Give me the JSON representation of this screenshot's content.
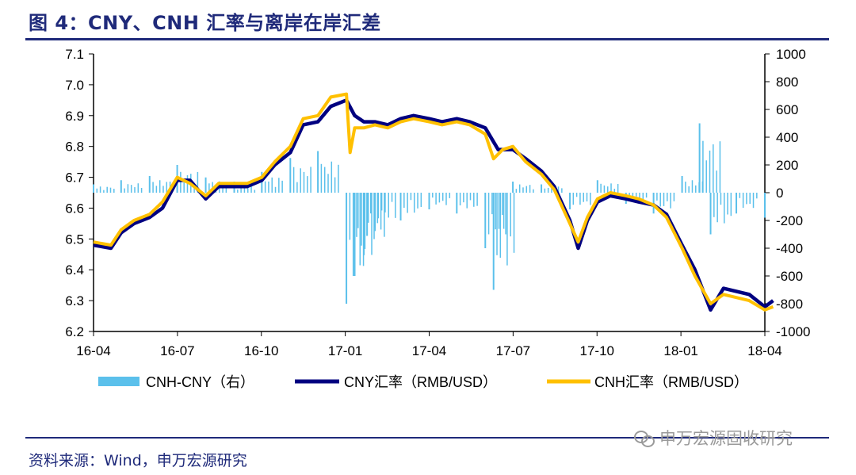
{
  "title": "图 4：CNY、CNH 汇率与离岸在岸汇差",
  "source": "资料来源：Wind，申万宏源研究",
  "watermark": "申万宏源固收研究",
  "colors": {
    "title": "#1F2A7A",
    "cny": "#000080",
    "cnh": "#FFC000",
    "spread": "#5BC0EB",
    "rule": "#1F2A7A"
  },
  "chart_data": {
    "type": "line",
    "x_ticks": [
      "16-04",
      "16-07",
      "16-10",
      "17-01",
      "17-04",
      "17-07",
      "17-10",
      "18-01",
      "18-04"
    ],
    "x_range": [
      "2016-04",
      "2018-04"
    ],
    "y_left": {
      "range": [
        6.2,
        7.1
      ],
      "ticks": [
        "7.1",
        "7.0",
        "6.9",
        "6.8",
        "6.7",
        "6.6",
        "6.5",
        "6.4",
        "6.3",
        "6.2"
      ]
    },
    "y_right": {
      "range": [
        -1000,
        1000
      ],
      "ticks": [
        "1000",
        "800",
        "600",
        "400",
        "200",
        "0",
        "-200",
        "-400",
        "-600",
        "-800",
        "-1000"
      ]
    },
    "legend": {
      "placement": "bottom",
      "items": [
        "CNH-CNY（右）",
        "CNY汇率（RMB/USD）",
        "CNH汇率（RMB/USD）"
      ]
    },
    "series": [
      {
        "name": "CNY汇率（RMB/USD）",
        "axis": "left",
        "kind": "line",
        "points": [
          [
            "2016-04",
            6.48
          ],
          [
            "2016-04-20",
            6.47
          ],
          [
            "2016-05",
            6.52
          ],
          [
            "2016-05-15",
            6.55
          ],
          [
            "2016-06",
            6.57
          ],
          [
            "2016-06-15",
            6.6
          ],
          [
            "2016-07",
            6.69
          ],
          [
            "2016-07-15",
            6.69
          ],
          [
            "2016-08",
            6.63
          ],
          [
            "2016-08-15",
            6.67
          ],
          [
            "2016-09",
            6.67
          ],
          [
            "2016-09-15",
            6.67
          ],
          [
            "2016-10",
            6.69
          ],
          [
            "2016-10-15",
            6.74
          ],
          [
            "2016-11",
            6.78
          ],
          [
            "2016-11-15",
            6.87
          ],
          [
            "2016-12",
            6.88
          ],
          [
            "2016-12-15",
            6.93
          ],
          [
            "2017-01",
            6.95
          ],
          [
            "2017-01-10",
            6.9
          ],
          [
            "2017-01-20",
            6.88
          ],
          [
            "2017-02",
            6.88
          ],
          [
            "2017-02-15",
            6.87
          ],
          [
            "2017-03",
            6.89
          ],
          [
            "2017-03-15",
            6.9
          ],
          [
            "2017-04",
            6.89
          ],
          [
            "2017-04-15",
            6.88
          ],
          [
            "2017-05",
            6.89
          ],
          [
            "2017-05-15",
            6.88
          ],
          [
            "2017-06",
            6.86
          ],
          [
            "2017-06-15",
            6.79
          ],
          [
            "2017-07",
            6.79
          ],
          [
            "2017-07-15",
            6.76
          ],
          [
            "2017-08",
            6.72
          ],
          [
            "2017-08-15",
            6.67
          ],
          [
            "2017-09",
            6.56
          ],
          [
            "2017-09-10",
            6.47
          ],
          [
            "2017-09-20",
            6.56
          ],
          [
            "2017-10",
            6.62
          ],
          [
            "2017-10-15",
            6.64
          ],
          [
            "2017-11",
            6.63
          ],
          [
            "2017-11-15",
            6.62
          ],
          [
            "2017-12",
            6.61
          ],
          [
            "2017-12-15",
            6.58
          ],
          [
            "2018-01",
            6.48
          ],
          [
            "2018-01-15",
            6.4
          ],
          [
            "2018-02",
            6.27
          ],
          [
            "2018-02-15",
            6.34
          ],
          [
            "2018-03",
            6.33
          ],
          [
            "2018-03-15",
            6.32
          ],
          [
            "2018-04",
            6.28
          ],
          [
            "2018-04-10",
            6.3
          ]
        ]
      },
      {
        "name": "CNH汇率（RMB/USD）",
        "axis": "left",
        "kind": "line",
        "points": [
          [
            "2016-04",
            6.49
          ],
          [
            "2016-04-20",
            6.48
          ],
          [
            "2016-05",
            6.53
          ],
          [
            "2016-05-15",
            6.56
          ],
          [
            "2016-06",
            6.58
          ],
          [
            "2016-06-15",
            6.62
          ],
          [
            "2016-07",
            6.7
          ],
          [
            "2016-07-15",
            6.68
          ],
          [
            "2016-08",
            6.64
          ],
          [
            "2016-08-15",
            6.68
          ],
          [
            "2016-09",
            6.68
          ],
          [
            "2016-09-15",
            6.68
          ],
          [
            "2016-10",
            6.7
          ],
          [
            "2016-10-15",
            6.75
          ],
          [
            "2016-11",
            6.8
          ],
          [
            "2016-11-15",
            6.89
          ],
          [
            "2016-12",
            6.9
          ],
          [
            "2016-12-15",
            6.96
          ],
          [
            "2017-01",
            6.97
          ],
          [
            "2017-01-05",
            6.78
          ],
          [
            "2017-01-10",
            6.86
          ],
          [
            "2017-01-20",
            6.86
          ],
          [
            "2017-02",
            6.87
          ],
          [
            "2017-02-15",
            6.86
          ],
          [
            "2017-03",
            6.88
          ],
          [
            "2017-03-15",
            6.89
          ],
          [
            "2017-04",
            6.88
          ],
          [
            "2017-04-15",
            6.87
          ],
          [
            "2017-05",
            6.88
          ],
          [
            "2017-05-15",
            6.87
          ],
          [
            "2017-06",
            6.84
          ],
          [
            "2017-06-10",
            6.76
          ],
          [
            "2017-06-20",
            6.79
          ],
          [
            "2017-07",
            6.8
          ],
          [
            "2017-07-15",
            6.75
          ],
          [
            "2017-08",
            6.71
          ],
          [
            "2017-08-15",
            6.66
          ],
          [
            "2017-09",
            6.55
          ],
          [
            "2017-09-10",
            6.49
          ],
          [
            "2017-09-20",
            6.57
          ],
          [
            "2017-10",
            6.63
          ],
          [
            "2017-10-15",
            6.65
          ],
          [
            "2017-11",
            6.64
          ],
          [
            "2017-11-15",
            6.63
          ],
          [
            "2017-12",
            6.61
          ],
          [
            "2017-12-15",
            6.57
          ],
          [
            "2018-01",
            6.47
          ],
          [
            "2018-01-15",
            6.38
          ],
          [
            "2018-02",
            6.29
          ],
          [
            "2018-02-15",
            6.32
          ],
          [
            "2018-03",
            6.31
          ],
          [
            "2018-03-15",
            6.3
          ],
          [
            "2018-04",
            6.27
          ],
          [
            "2018-04-10",
            6.28
          ]
        ]
      },
      {
        "name": "CNH-CNY（右）",
        "axis": "right",
        "kind": "bar",
        "points": [
          [
            "2016-04",
            60
          ],
          [
            "2016-05",
            90
          ],
          [
            "2016-06",
            120
          ],
          [
            "2016-07",
            200
          ],
          [
            "2016-08",
            110
          ],
          [
            "2016-09",
            80
          ],
          [
            "2016-10",
            150
          ],
          [
            "2016-11",
            250
          ],
          [
            "2016-12",
            300
          ],
          [
            "2017-01",
            -800
          ],
          [
            "2017-01-10",
            -600
          ],
          [
            "2017-01-20",
            -450
          ],
          [
            "2017-02",
            -250
          ],
          [
            "2017-03",
            -200
          ],
          [
            "2017-04",
            -120
          ],
          [
            "2017-05",
            -150
          ],
          [
            "2017-06",
            -400
          ],
          [
            "2017-06-10",
            -700
          ],
          [
            "2017-07",
            80
          ],
          [
            "2017-08",
            60
          ],
          [
            "2017-09",
            -120
          ],
          [
            "2017-10",
            90
          ],
          [
            "2017-11",
            -80
          ],
          [
            "2017-12",
            -150
          ],
          [
            "2018-01",
            120
          ],
          [
            "2018-01-20",
            500
          ],
          [
            "2018-02",
            -300
          ],
          [
            "2018-03",
            -150
          ],
          [
            "2018-04",
            -180
          ]
        ]
      }
    ],
    "grid": false
  }
}
